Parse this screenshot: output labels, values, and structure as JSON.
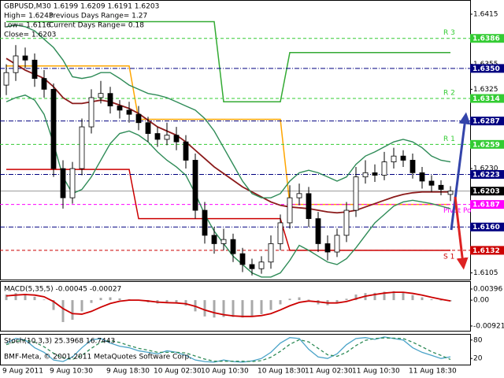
{
  "chart_data": [
    {
      "type": "candlestick",
      "title": "GBPUSD,M30 1.6199 1.6209 1.6191 1.6203",
      "annotations": [
        "High= 1.6243",
        "Previous Days Range= 1.27",
        "Low= 1.6116",
        "Current Days Range= 0.18",
        "Close= 1.6203"
      ],
      "footer": "BMF-Meta, © 2001-2011 MetaQuotes Software Corp.",
      "categories": [
        "9 Aug 2011",
        null,
        null,
        null,
        null,
        "9 Aug 10:30",
        null,
        null,
        null,
        null,
        null,
        "9 Aug 18:30",
        null,
        null,
        null,
        null,
        "10 Aug 02:30",
        null,
        null,
        null,
        null,
        "10 Aug 10:30",
        null,
        null,
        null,
        null,
        null,
        "10 Aug 18:30",
        null,
        null,
        null,
        null,
        "11 Aug 02:30",
        null,
        null,
        null,
        null,
        "11 Aug 10:30",
        null,
        null,
        null,
        null,
        null,
        "11 Aug 18:30",
        null,
        null,
        null,
        null
      ],
      "open": [
        1.633,
        1.6345,
        1.6365,
        1.636,
        1.6338,
        1.6325,
        1.623,
        1.6195,
        1.623,
        1.628,
        1.6315,
        1.632,
        1.6305,
        1.63,
        1.6295,
        1.6285,
        1.6272,
        1.6265,
        1.627,
        1.6262,
        1.624,
        1.618,
        1.615,
        1.614,
        1.6145,
        1.6128,
        1.6115,
        1.611,
        1.6118,
        1.614,
        1.6165,
        1.6195,
        1.62,
        1.617,
        1.614,
        1.613,
        1.615,
        1.618,
        1.622,
        1.6225,
        1.6222,
        1.6238,
        1.6245,
        1.624,
        1.6225,
        1.6215,
        1.621,
        1.6199
      ],
      "high": [
        1.6355,
        1.6378,
        1.6375,
        1.6368,
        1.6348,
        1.6332,
        1.624,
        1.6238,
        1.629,
        1.6325,
        1.6335,
        1.6328,
        1.6312,
        1.631,
        1.6305,
        1.6292,
        1.628,
        1.6285,
        1.628,
        1.627,
        1.6248,
        1.619,
        1.616,
        1.6158,
        1.6152,
        1.6135,
        1.6122,
        1.6125,
        1.615,
        1.6175,
        1.621,
        1.6212,
        1.6208,
        1.6178,
        1.615,
        1.6158,
        1.619,
        1.6232,
        1.624,
        1.6235,
        1.625,
        1.6255,
        1.6252,
        1.6248,
        1.6232,
        1.6222,
        1.6216,
        1.6209
      ],
      "low": [
        1.6318,
        1.6335,
        1.635,
        1.6328,
        1.6315,
        1.622,
        1.6182,
        1.6188,
        1.6222,
        1.6272,
        1.6308,
        1.6296,
        1.629,
        1.6285,
        1.6276,
        1.6262,
        1.6256,
        1.6258,
        1.6252,
        1.623,
        1.617,
        1.614,
        1.6128,
        1.6132,
        1.6118,
        1.6106,
        1.6102,
        1.6104,
        1.611,
        1.6132,
        1.6158,
        1.6186,
        1.616,
        1.613,
        1.612,
        1.6124,
        1.6142,
        1.6172,
        1.6212,
        1.6214,
        1.6216,
        1.623,
        1.6232,
        1.6218,
        1.6206,
        1.6202,
        1.6198,
        1.6191
      ],
      "close": [
        1.6345,
        1.6365,
        1.636,
        1.6338,
        1.6325,
        1.623,
        1.6195,
        1.623,
        1.628,
        1.6315,
        1.632,
        1.6305,
        1.63,
        1.6295,
        1.6285,
        1.6272,
        1.6265,
        1.627,
        1.6262,
        1.624,
        1.618,
        1.615,
        1.614,
        1.6145,
        1.6128,
        1.6115,
        1.611,
        1.6118,
        1.614,
        1.6165,
        1.6195,
        1.62,
        1.617,
        1.614,
        1.613,
        1.615,
        1.618,
        1.622,
        1.6225,
        1.6222,
        1.6238,
        1.6245,
        1.624,
        1.6225,
        1.6215,
        1.621,
        1.6205,
        1.6203
      ],
      "overlays": [
        {
          "color": "#8b1a1a",
          "values": [
            1.6362,
            1.6355,
            1.6348,
            1.6343,
            1.6338,
            1.6328,
            1.6315,
            1.6308,
            1.6308,
            1.631,
            1.6312,
            1.631,
            1.6306,
            1.6302,
            1.6296,
            1.6288,
            1.628,
            1.6275,
            1.627,
            1.6262,
            1.6252,
            1.6242,
            1.6232,
            1.6224,
            1.6216,
            1.6208,
            1.6202,
            1.6196,
            1.619,
            1.6186,
            1.6184,
            1.6183,
            1.6182,
            1.618,
            1.6178,
            1.6177,
            1.6178,
            1.618,
            1.6184,
            1.6188,
            1.6192,
            1.6196,
            1.6199,
            1.6201,
            1.6202,
            1.6202,
            1.6202,
            1.6202
          ]
        },
        {
          "color": "#2e8b57",
          "values": [
            1.64,
            1.6402,
            1.64,
            1.6395,
            1.6385,
            1.6375,
            1.636,
            1.634,
            1.6338,
            1.634,
            1.6345,
            1.6345,
            1.6338,
            1.633,
            1.6325,
            1.632,
            1.6318,
            1.6315,
            1.631,
            1.6305,
            1.63,
            1.629,
            1.6275,
            1.6255,
            1.6235,
            1.6215,
            1.62,
            1.6195,
            1.6195,
            1.62,
            1.6215,
            1.6225,
            1.6228,
            1.6225,
            1.622,
            1.6215,
            1.622,
            1.6235,
            1.6245,
            1.625,
            1.6256,
            1.6262,
            1.6265,
            1.6262,
            1.6255,
            1.6245,
            1.624,
            1.6238
          ]
        },
        {
          "color": "#2e8b57",
          "values": [
            1.631,
            1.6315,
            1.6318,
            1.6312,
            1.6295,
            1.626,
            1.622,
            1.62,
            1.6205,
            1.622,
            1.624,
            1.626,
            1.6272,
            1.6275,
            1.627,
            1.6262,
            1.625,
            1.624,
            1.6232,
            1.6222,
            1.62,
            1.6175,
            1.6155,
            1.614,
            1.6125,
            1.6115,
            1.6105,
            1.61,
            1.61,
            1.6105,
            1.612,
            1.6138,
            1.6132,
            1.6125,
            1.6118,
            1.6115,
            1.6122,
            1.6135,
            1.615,
            1.6165,
            1.6175,
            1.6185,
            1.619,
            1.6192,
            1.619,
            1.6188,
            1.6185,
            1.6182
          ]
        }
      ],
      "steps": [
        {
          "color": "#ffa500",
          "values": [
            1.6353,
            1.6353,
            1.6353,
            1.6353,
            1.6353,
            1.6353,
            1.6353,
            1.6353,
            1.6353,
            1.6353,
            1.6353,
            1.6353,
            1.6353,
            1.6353,
            1.6289,
            1.6289,
            1.6289,
            1.6289,
            1.6289,
            1.6289,
            1.6289,
            1.6289,
            1.6289,
            1.6289,
            1.6289,
            1.6289,
            1.6289,
            1.6289,
            1.6289,
            1.6289,
            1.6187,
            1.6187,
            1.6187,
            1.6187,
            1.6187,
            1.6187,
            1.6187,
            1.6187,
            1.6187,
            1.6187,
            1.6187,
            1.6187,
            1.6187,
            1.6187,
            1.6187,
            1.6187,
            1.6187,
            1.6187
          ]
        },
        {
          "color": "#cc0000",
          "values": [
            1.6229,
            1.6229,
            1.6229,
            1.6229,
            1.6229,
            1.6229,
            1.6229,
            1.6229,
            1.6229,
            1.6229,
            1.6229,
            1.6229,
            1.6229,
            1.6229,
            1.617,
            1.617,
            1.617,
            1.617,
            1.617,
            1.617,
            1.617,
            1.617,
            1.617,
            1.617,
            1.617,
            1.617,
            1.617,
            1.617,
            1.617,
            1.617,
            1.6132,
            1.6132,
            1.6132,
            1.6132,
            1.6132,
            1.6132,
            1.6132,
            1.6132,
            1.6132,
            1.6132,
            1.6132,
            1.6132,
            1.6132,
            1.6132,
            1.6132,
            1.6132,
            1.6132,
            1.6132
          ]
        },
        {
          "color": "#33aa33",
          "values": [
            1.6406,
            1.6406,
            1.6406,
            1.6406,
            1.6406,
            1.6406,
            1.6406,
            1.6406,
            1.6406,
            1.6406,
            1.6406,
            1.6406,
            1.6406,
            1.6406,
            1.6406,
            1.6406,
            1.6406,
            1.6406,
            1.6406,
            1.6406,
            1.6406,
            1.6406,
            1.6406,
            1.631,
            1.631,
            1.631,
            1.631,
            1.631,
            1.631,
            1.631,
            1.6369,
            1.6369,
            1.6369,
            1.6369,
            1.6369,
            1.6369,
            1.6369,
            1.6369,
            1.6369,
            1.6369,
            1.6369,
            1.6369,
            1.6369,
            1.6369,
            1.6369,
            1.6369,
            1.6369,
            1.6369
          ]
        }
      ],
      "levels": [
        {
          "value": 1.6386,
          "color": "#33cc33",
          "style": "dash",
          "name": "R 3"
        },
        {
          "value": 1.635,
          "label": "1.6350",
          "color": "#000080",
          "style": "dashdot"
        },
        {
          "value": 1.6314,
          "color": "#33cc33",
          "style": "dash",
          "name": "R 2"
        },
        {
          "value": 1.6287,
          "color": "#000080",
          "style": "dashdot"
        },
        {
          "value": 1.6259,
          "color": "#33cc33",
          "style": "dash",
          "name": "R 1"
        },
        {
          "value": 1.6223,
          "color": "#000080",
          "style": "dashdot"
        },
        {
          "value": 1.6203,
          "color": "#000000",
          "style": "solid"
        },
        {
          "value": 1.6187,
          "color": "#ff00ff",
          "style": "dash",
          "name": "Pivot Po"
        },
        {
          "value": 1.616,
          "label": "1.6160",
          "color": "#000080",
          "style": "dashdot"
        },
        {
          "value": 1.6132,
          "color": "#cc0000",
          "style": "dash",
          "name": "S 1"
        }
      ],
      "ylim": [
        1.6097,
        1.6432
      ],
      "yticks": [
        1.6415,
        1.6355,
        1.6325,
        {
          "value": 1.623,
          "label": "1.6230"
        },
        1.6105
      ]
    },
    {
      "type": "bar",
      "title": "MACD(5,35,5) -0.00045 -0.00027",
      "values": [
        0.002,
        0.0025,
        0.0022,
        0.0012,
        0.0002,
        -0.0035,
        -0.0078,
        -0.007,
        -0.004,
        -0.001,
        0.0008,
        0.001,
        0.0006,
        0.0003,
        -0.0002,
        -0.0008,
        -0.0012,
        -0.001,
        -0.0012,
        -0.002,
        -0.004,
        -0.0058,
        -0.0062,
        -0.006,
        -0.006,
        -0.0062,
        -0.0058,
        -0.005,
        -0.0035,
        -0.0015,
        0.0005,
        0.001,
        0.0002,
        -0.0015,
        -0.0018,
        -0.001,
        0.0005,
        0.002,
        0.0025,
        0.0026,
        0.003,
        0.0032,
        0.0028,
        0.0018,
        0.001,
        0.0003,
        -0.0002,
        -0.00045
      ],
      "color": "#a9a9a9",
      "signal": {
        "color": "#cc0000",
        "values": [
          0.0015,
          0.0018,
          0.002,
          0.0018,
          0.0012,
          -0.0005,
          -0.003,
          -0.0048,
          -0.005,
          -0.004,
          -0.0025,
          -0.0012,
          -0.0004,
          0.0,
          0.0,
          -0.0003,
          -0.0007,
          -0.0009,
          -0.001,
          -0.0013,
          -0.0022,
          -0.0035,
          -0.0045,
          -0.0052,
          -0.0056,
          -0.0058,
          -0.0058,
          -0.0055,
          -0.0048,
          -0.0035,
          -0.002,
          -0.0008,
          -0.0003,
          -0.0006,
          -0.001,
          -0.001,
          -0.0005,
          0.0005,
          0.0014,
          0.002,
          0.0025,
          0.0028,
          0.0028,
          0.0024,
          0.0018,
          0.001,
          0.0003,
          -0.00027
        ]
      },
      "ylim": [
        -0.0109,
        0.00676
      ],
      "yticks": [
        0.00396,
        {
          "value": 0,
          "label": "0.00"
        },
        -0.00921
      ]
    },
    {
      "type": "line",
      "title": "Stoch(10,3,3) 25.3968 16.7443",
      "series": [
        {
          "color": "#4aa3c8",
          "style": "solid",
          "values": [
            70,
            85,
            80,
            55,
            40,
            15,
            10,
            25,
            55,
            80,
            85,
            70,
            60,
            55,
            45,
            40,
            35,
            45,
            40,
            30,
            15,
            10,
            8,
            15,
            10,
            8,
            12,
            20,
            40,
            70,
            88,
            85,
            50,
            25,
            20,
            35,
            65,
            85,
            88,
            82,
            90,
            85,
            80,
            55,
            40,
            30,
            20,
            25.3968
          ]
        },
        {
          "color": "#2e8b57",
          "style": "dash",
          "values": [
            65,
            75,
            80,
            73,
            58,
            37,
            22,
            17,
            30,
            53,
            73,
            78,
            72,
            62,
            53,
            47,
            40,
            40,
            40,
            38,
            28,
            18,
            11,
            11,
            11,
            11,
            10,
            13,
            24,
            43,
            66,
            81,
            74,
            53,
            32,
            27,
            40,
            62,
            79,
            85,
            87,
            86,
            85,
            73,
            58,
            42,
            30,
            16.7443
          ]
        }
      ],
      "ylim": [
        0,
        100
      ],
      "yticks": [
        80,
        20
      ]
    }
  ]
}
